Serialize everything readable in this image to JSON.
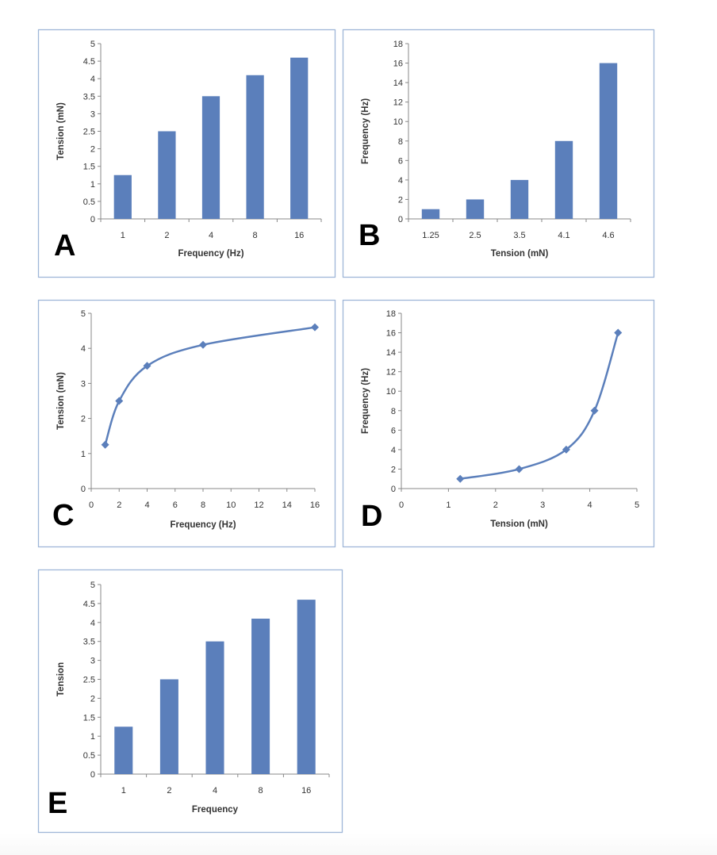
{
  "colors": {
    "series": "#5b7fbb",
    "frame": "#9fb6d8",
    "axis": "#888888"
  },
  "chart_data": [
    {
      "panel": "A",
      "type": "bar",
      "categories": [
        "1",
        "2",
        "4",
        "8",
        "16"
      ],
      "values": [
        1.25,
        2.5,
        3.5,
        4.1,
        4.6
      ],
      "xlabel": "Frequency (Hz)",
      "ylabel": "Tension (mN)",
      "ylim": [
        0,
        5
      ],
      "yticks": [
        "0",
        "0.5",
        "1",
        "1.5",
        "2",
        "2.5",
        "3",
        "3.5",
        "4",
        "4.5",
        "5"
      ],
      "grid": false
    },
    {
      "panel": "B",
      "type": "bar",
      "categories": [
        "1.25",
        "2.5",
        "3.5",
        "4.1",
        "4.6"
      ],
      "values": [
        1,
        2,
        4,
        8,
        16
      ],
      "xlabel": "Tension (mN)",
      "ylabel": "Frequency (Hz)",
      "ylim": [
        0,
        18
      ],
      "yticks": [
        "0",
        "2",
        "4",
        "6",
        "8",
        "10",
        "12",
        "14",
        "16",
        "18"
      ],
      "grid": false
    },
    {
      "panel": "C",
      "type": "line",
      "x": [
        1,
        2,
        4,
        8,
        16
      ],
      "y": [
        1.25,
        2.5,
        3.5,
        4.1,
        4.6
      ],
      "xlabel": "Frequency (Hz)",
      "ylabel": "Tension (mN)",
      "xlim": [
        0,
        16
      ],
      "ylim": [
        0,
        5
      ],
      "xticks": [
        "0",
        "2",
        "4",
        "6",
        "8",
        "10",
        "12",
        "14",
        "16"
      ],
      "yticks": [
        "0",
        "1",
        "2",
        "3",
        "4",
        "5"
      ],
      "marker": "diamond",
      "smooth": true,
      "grid": false
    },
    {
      "panel": "D",
      "type": "line",
      "x": [
        1.25,
        2.5,
        3.5,
        4.1,
        4.6
      ],
      "y": [
        1,
        2,
        4,
        8,
        16
      ],
      "xlabel": "Tension (mN)",
      "ylabel": "Frequency (Hz)",
      "xlim": [
        0,
        5
      ],
      "ylim": [
        0,
        18
      ],
      "xticks": [
        "0",
        "1",
        "2",
        "3",
        "4",
        "5"
      ],
      "yticks": [
        "0",
        "2",
        "4",
        "6",
        "8",
        "10",
        "12",
        "14",
        "16",
        "18"
      ],
      "marker": "diamond",
      "smooth": true,
      "grid": false
    },
    {
      "panel": "E",
      "type": "bar",
      "categories": [
        "1",
        "2",
        "4",
        "8",
        "16"
      ],
      "values": [
        1.25,
        2.5,
        3.5,
        4.1,
        4.6
      ],
      "xlabel": "Frequency",
      "ylabel": "Tension",
      "ylim": [
        0,
        5
      ],
      "yticks": [
        "0",
        "0.5",
        "1",
        "1.5",
        "2",
        "2.5",
        "3",
        "3.5",
        "4",
        "4.5",
        "5"
      ],
      "grid": false
    }
  ]
}
